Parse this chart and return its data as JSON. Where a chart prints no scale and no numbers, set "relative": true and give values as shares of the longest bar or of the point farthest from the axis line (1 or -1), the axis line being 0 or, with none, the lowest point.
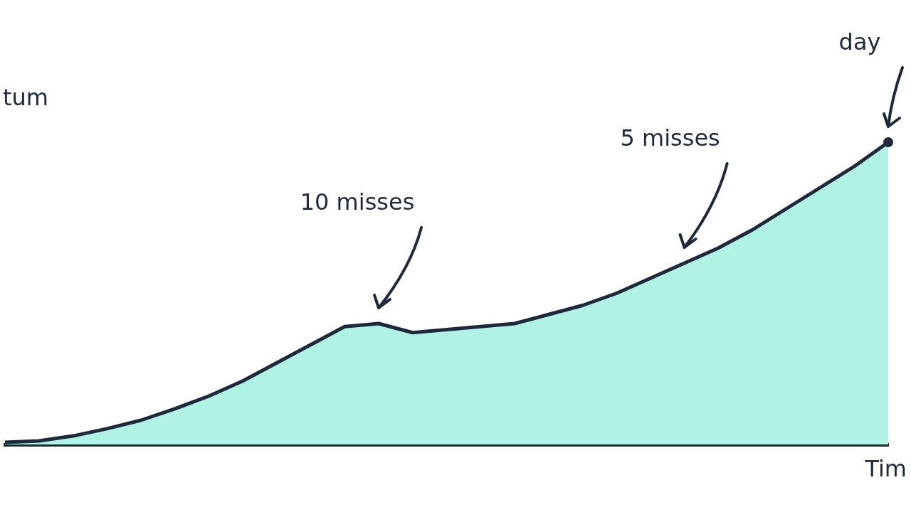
{
  "chart_data": {
    "type": "area",
    "relative": true,
    "ylabel": "tum",
    "xlabel": "Tim",
    "categories": [
      null,
      null,
      null,
      null,
      null,
      null,
      null,
      null,
      null,
      null,
      null,
      null,
      null,
      null,
      null,
      null,
      null,
      null,
      null,
      null,
      null,
      null,
      null,
      null,
      null,
      null,
      null
    ],
    "series": [
      {
        "color": "#b0f2e4",
        "values": [
          0.007,
          0.012,
          0.028,
          0.052,
          0.08,
          0.118,
          0.16,
          0.21,
          0.27,
          0.33,
          0.39,
          0.4,
          0.37,
          0.38,
          0.39,
          0.4,
          0.43,
          0.46,
          0.5,
          0.55,
          0.6,
          0.65,
          0.71,
          0.78,
          0.85,
          0.92,
          1
        ]
      }
    ],
    "annotations": [
      "10 misses",
      "5 misses",
      "day"
    ],
    "grid": false,
    "legend": false
  }
}
